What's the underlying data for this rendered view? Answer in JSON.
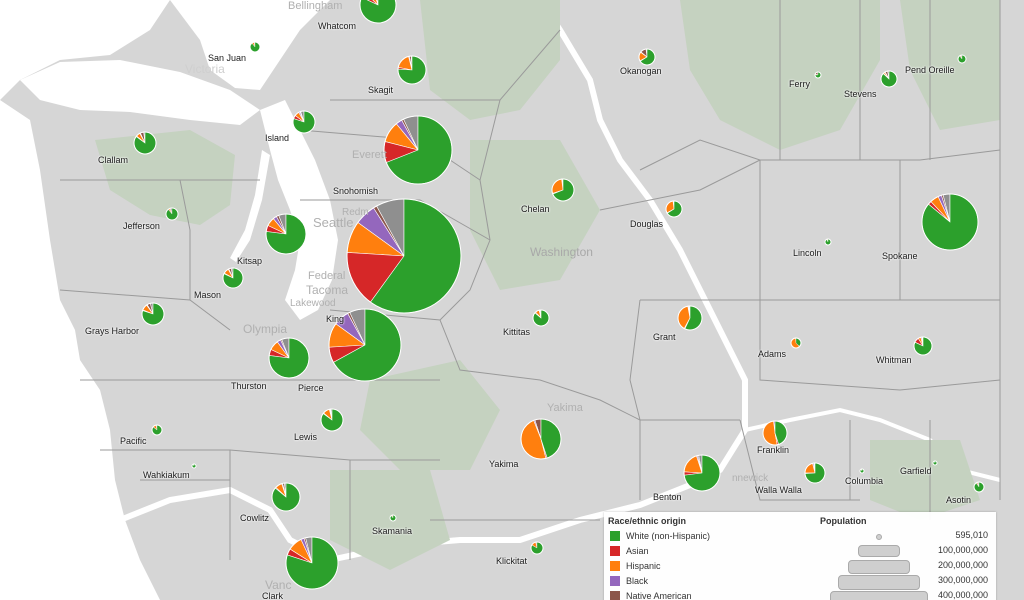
{
  "colors": {
    "white": "#2ca02c",
    "asian": "#d62728",
    "hispanic": "#ff7f0e",
    "black": "#9467bd",
    "native": "#8c564b",
    "other": "#8f8f8f",
    "water": "#ffffff",
    "land": "#d6d6d6",
    "park": "#c5d2c0"
  },
  "basemap_labels": {
    "bellingham": "Bellingham",
    "victoria": "Victoria",
    "everett": "Everett",
    "seattle": "Seattle",
    "redmond": "Redm",
    "federal_way": "Federal",
    "tacoma": "Tacoma",
    "lakewood": "Lakewood",
    "olympia": "Olympia",
    "washington": "Washington",
    "yakima": "Yakima",
    "kennewick": "nnewick",
    "vancouver": "Vanc"
  },
  "counties": [
    {
      "name": "Whatcom",
      "w": 0.82,
      "a": 0.05,
      "h": 0.08,
      "b": 0.01,
      "n": 0.03,
      "o": 0.01
    },
    {
      "name": "San Juan",
      "w": 0.89,
      "a": 0.01,
      "h": 0.06,
      "b": 0.01,
      "n": 0.01,
      "o": 0.02
    },
    {
      "name": "Skagit",
      "w": 0.76,
      "a": 0.02,
      "h": 0.18,
      "b": 0.01,
      "n": 0.02,
      "o": 0.01
    },
    {
      "name": "Okanogan",
      "w": 0.66,
      "a": 0.01,
      "h": 0.18,
      "b": 0.01,
      "n": 0.12,
      "o": 0.02
    },
    {
      "name": "Ferry",
      "w": 0.75,
      "a": 0.01,
      "h": 0.04,
      "b": 0.01,
      "n": 0.16,
      "o": 0.03
    },
    {
      "name": "Stevens",
      "w": 0.87,
      "a": 0.01,
      "h": 0.03,
      "b": 0.01,
      "n": 0.05,
      "o": 0.03
    },
    {
      "name": "Pend Oreille",
      "w": 0.89,
      "a": 0.01,
      "h": 0.03,
      "b": 0.01,
      "n": 0.03,
      "o": 0.03
    },
    {
      "name": "Island",
      "w": 0.8,
      "a": 0.05,
      "h": 0.07,
      "b": 0.02,
      "n": 0.01,
      "o": 0.05
    },
    {
      "name": "Clallam",
      "w": 0.85,
      "a": 0.01,
      "h": 0.06,
      "b": 0.01,
      "n": 0.05,
      "o": 0.02
    },
    {
      "name": "Snohomish",
      "w": 0.69,
      "a": 0.1,
      "h": 0.1,
      "b": 0.03,
      "n": 0.01,
      "o": 0.07
    },
    {
      "name": "Chelan",
      "w": 0.69,
      "a": 0.01,
      "h": 0.28,
      "b": 0.01,
      "n": 0.01,
      "o": 0.0
    },
    {
      "name": "Jefferson",
      "w": 0.89,
      "a": 0.01,
      "h": 0.03,
      "b": 0.01,
      "n": 0.02,
      "o": 0.04
    },
    {
      "name": "Douglas",
      "w": 0.66,
      "a": 0.01,
      "h": 0.31,
      "b": 0.01,
      "n": 0.01,
      "o": 0.0
    },
    {
      "name": "Spokane",
      "w": 0.86,
      "a": 0.02,
      "h": 0.05,
      "b": 0.02,
      "n": 0.01,
      "o": 0.04
    },
    {
      "name": "Kitsap",
      "w": 0.77,
      "a": 0.05,
      "h": 0.07,
      "b": 0.03,
      "n": 0.02,
      "o": 0.06
    },
    {
      "name": "Lincoln",
      "w": 0.92,
      "a": 0.01,
      "h": 0.03,
      "b": 0.01,
      "n": 0.02,
      "o": 0.01
    },
    {
      "name": "Mason",
      "w": 0.82,
      "a": 0.01,
      "h": 0.09,
      "b": 0.01,
      "n": 0.04,
      "o": 0.03
    },
    {
      "name": "Grays Harbor",
      "w": 0.8,
      "a": 0.01,
      "h": 0.09,
      "b": 0.01,
      "n": 0.05,
      "o": 0.04
    },
    {
      "name": "Kittitas",
      "w": 0.86,
      "a": 0.02,
      "h": 0.08,
      "b": 0.01,
      "n": 0.01,
      "o": 0.02
    },
    {
      "name": "King",
      "w": 0.6,
      "a": 0.16,
      "h": 0.09,
      "b": 0.06,
      "n": 0.01,
      "o": 0.08
    },
    {
      "name": "Grant",
      "w": 0.57,
      "a": 0.01,
      "h": 0.39,
      "b": 0.01,
      "n": 0.01,
      "o": 0.01
    },
    {
      "name": "Adams",
      "w": 0.37,
      "a": 0.01,
      "h": 0.6,
      "b": 0.01,
      "n": 0.01,
      "o": 0.0
    },
    {
      "name": "Whitman",
      "w": 0.82,
      "a": 0.09,
      "h": 0.05,
      "b": 0.02,
      "n": 0.01,
      "o": 0.01
    },
    {
      "name": "Thurston",
      "w": 0.77,
      "a": 0.05,
      "h": 0.08,
      "b": 0.03,
      "n": 0.01,
      "o": 0.06
    },
    {
      "name": "Pierce",
      "w": 0.67,
      "a": 0.07,
      "h": 0.11,
      "b": 0.07,
      "n": 0.01,
      "o": 0.07
    },
    {
      "name": "Lewis",
      "w": 0.85,
      "a": 0.01,
      "h": 0.1,
      "b": 0.01,
      "n": 0.01,
      "o": 0.02
    },
    {
      "name": "Yakima",
      "w": 0.45,
      "a": 0.01,
      "h": 0.48,
      "b": 0.01,
      "n": 0.05,
      "o": 0.0
    },
    {
      "name": "Pacific",
      "w": 0.85,
      "a": 0.02,
      "h": 0.09,
      "b": 0.01,
      "n": 0.01,
      "o": 0.02
    },
    {
      "name": "Wahkiakum",
      "w": 0.92,
      "a": 0.01,
      "h": 0.04,
      "b": 0.01,
      "n": 0.01,
      "o": 0.01
    },
    {
      "name": "Franklin",
      "w": 0.45,
      "a": 0.02,
      "h": 0.51,
      "b": 0.02,
      "n": 0.0,
      "o": 0.0
    },
    {
      "name": "Benton",
      "w": 0.73,
      "a": 0.03,
      "h": 0.19,
      "b": 0.01,
      "n": 0.01,
      "o": 0.03
    },
    {
      "name": "Walla Walla",
      "w": 0.74,
      "a": 0.01,
      "h": 0.21,
      "b": 0.02,
      "n": 0.01,
      "o": 0.01
    },
    {
      "name": "Columbia",
      "w": 0.9,
      "a": 0.01,
      "h": 0.06,
      "b": 0.01,
      "n": 0.01,
      "o": 0.01
    },
    {
      "name": "Garfield",
      "w": 0.94,
      "a": 0.01,
      "h": 0.03,
      "b": 0.01,
      "n": 0.01,
      "o": 0.0
    },
    {
      "name": "Asotin",
      "w": 0.9,
      "a": 0.01,
      "h": 0.03,
      "b": 0.01,
      "n": 0.02,
      "o": 0.03
    },
    {
      "name": "Cowlitz",
      "w": 0.86,
      "a": 0.01,
      "h": 0.08,
      "b": 0.01,
      "n": 0.02,
      "o": 0.02
    },
    {
      "name": "Skamania",
      "w": 0.9,
      "a": 0.01,
      "h": 0.05,
      "b": 0.01,
      "n": 0.01,
      "o": 0.02
    },
    {
      "name": "Klickitat",
      "w": 0.83,
      "a": 0.01,
      "h": 0.12,
      "b": 0.01,
      "n": 0.02,
      "o": 0.01
    },
    {
      "name": "Clark",
      "w": 0.8,
      "a": 0.04,
      "h": 0.09,
      "b": 0.02,
      "n": 0.01,
      "o": 0.04
    }
  ],
  "legend": {
    "race_title": "Race/ethnic origin",
    "pop_title": "Population",
    "items": [
      "White (non-Hispanic)",
      "Asian",
      "Hispanic",
      "Black",
      "Native American"
    ],
    "pop_values": [
      "595,010",
      "100,000,000",
      "200,000,000",
      "300,000,000",
      "400,000,000"
    ]
  }
}
